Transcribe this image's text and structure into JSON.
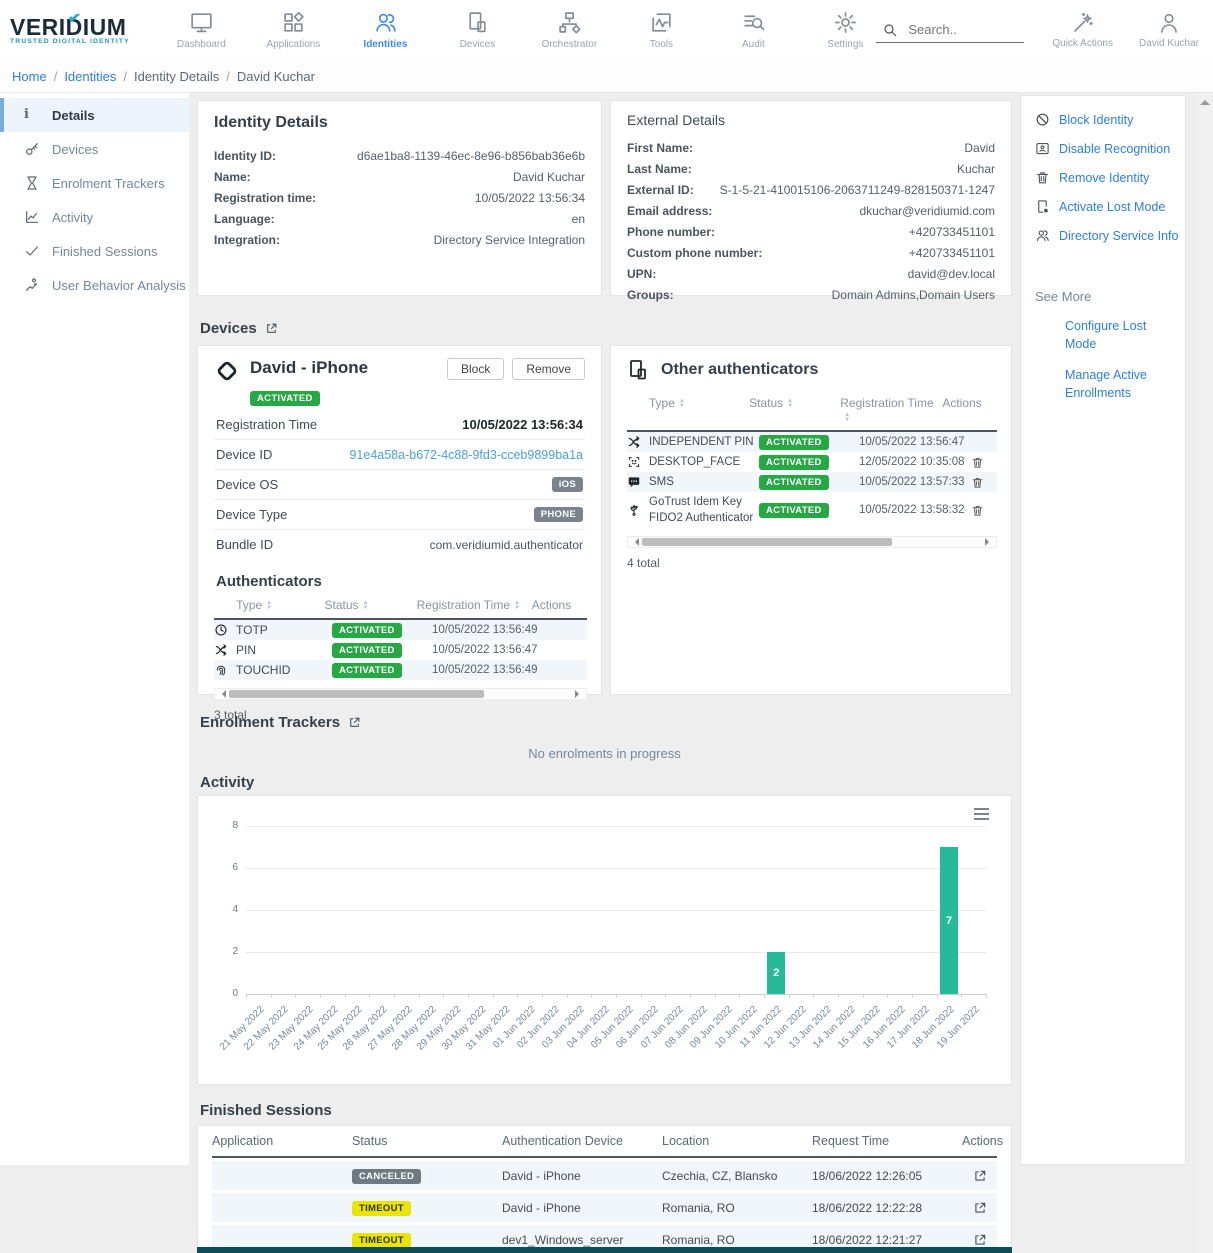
{
  "brand": {
    "name": "VERIDIUM",
    "tagline": "TRUSTED DIGITAL IDENTITY"
  },
  "nav": {
    "items": [
      {
        "label": "Dashboard"
      },
      {
        "label": "Applications"
      },
      {
        "label": "Identities",
        "active": true
      },
      {
        "label": "Devices"
      },
      {
        "label": "Orchestrator"
      },
      {
        "label": "Tools"
      },
      {
        "label": "Audit"
      },
      {
        "label": "Settings"
      }
    ]
  },
  "topbar": {
    "search_placeholder": "Search..",
    "quick_actions": "Quick Actions",
    "user": "David Kuchar"
  },
  "breadcrumb": {
    "items": [
      "Home",
      "Identities",
      "Identity Details",
      "David Kuchar"
    ]
  },
  "sidebar": {
    "items": [
      {
        "label": "Details",
        "active": true
      },
      {
        "label": "Devices"
      },
      {
        "label": "Enrolment Trackers"
      },
      {
        "label": "Activity"
      },
      {
        "label": "Finished Sessions"
      },
      {
        "label": "User Behavior Analysis"
      }
    ]
  },
  "identity_details": {
    "title": "Identity Details",
    "fields": [
      {
        "label": "Identity ID:",
        "value": "d6ae1ba8-1139-46ec-8e96-b856bab36e6b"
      },
      {
        "label": "Name:",
        "value": "David Kuchar"
      },
      {
        "label": "Registration time:",
        "value": "10/05/2022 13:56:34"
      },
      {
        "label": "Language:",
        "value": "en"
      },
      {
        "label": "Integration:",
        "value": "Directory Service Integration"
      }
    ]
  },
  "external_details": {
    "title": "External Details",
    "fields": [
      {
        "label": "First Name:",
        "value": "David"
      },
      {
        "label": "Last Name:",
        "value": "Kuchar"
      },
      {
        "label": "External ID:",
        "value": "S-1-5-21-410015106-2063711249-828150371-1247"
      },
      {
        "label": "Email address:",
        "value": "dkuchar@veridiumid.com"
      },
      {
        "label": "Phone number:",
        "value": "+420733451101"
      },
      {
        "label": "Custom phone number:",
        "value": "+420733451101"
      },
      {
        "label": "UPN:",
        "value": "david@dev.local"
      },
      {
        "label": "Groups:",
        "value": "Domain Admins,Domain Users"
      }
    ]
  },
  "actions_panel": {
    "items": [
      {
        "label": "Block Identity"
      },
      {
        "label": "Disable Recognition"
      },
      {
        "label": "Remove Identity"
      },
      {
        "label": "Activate Lost Mode"
      },
      {
        "label": "Directory Service Info"
      }
    ],
    "see_more": "See More",
    "links": [
      "Configure Lost Mode",
      "Manage Active Enrollments"
    ]
  },
  "devices_section": {
    "title": "Devices"
  },
  "device": {
    "name": "David - iPhone",
    "status": "ACTIVATED",
    "block_label": "Block",
    "remove_label": "Remove",
    "fields": [
      {
        "label": "Registration Time",
        "value": "10/05/2022 13:56:34"
      },
      {
        "label": "Device ID",
        "value": "91e4a58a-b672-4c88-9fd3-cceb9899ba1a"
      },
      {
        "label": "Device OS",
        "value": "iOS"
      },
      {
        "label": "Device Type",
        "value": "PHONE"
      },
      {
        "label": "Bundle ID",
        "value": "com.veridiumid.authenticator"
      }
    ],
    "authenticators": {
      "title": "Authenticators",
      "columns": [
        "Type",
        "Status",
        "Registration Time",
        "Actions"
      ],
      "rows": [
        {
          "type": "TOTP",
          "status": "ACTIVATED",
          "time": "10/05/2022 13:56:49"
        },
        {
          "type": "PIN",
          "status": "ACTIVATED",
          "time": "10/05/2022 13:56:47"
        },
        {
          "type": "TOUCHID",
          "status": "ACTIVATED",
          "time": "10/05/2022 13:56:49"
        }
      ],
      "total": "3 total"
    }
  },
  "other_auth": {
    "title": "Other authenticators",
    "columns": [
      "Type",
      "Status",
      "Registration Time",
      "Actions"
    ],
    "rows": [
      {
        "type": "INDEPENDENT PIN",
        "status": "ACTIVATED",
        "time": "10/05/2022 13:56:47"
      },
      {
        "type": "DESKTOP_FACE",
        "status": "ACTIVATED",
        "time": "12/05/2022 10:35:08"
      },
      {
        "type": "SMS",
        "status": "ACTIVATED",
        "time": "10/05/2022 13:57:33"
      },
      {
        "type": "GoTrust Idem Key FIDO2 Authenticator",
        "status": "ACTIVATED",
        "time": "10/05/2022 13:58:32"
      }
    ],
    "total": "4 total"
  },
  "enrolment": {
    "title": "Enrolment Trackers",
    "empty": "No enrolments in progress"
  },
  "activity": {
    "title": "Activity",
    "chart_data": {
      "type": "bar",
      "title": "",
      "xlabel": "",
      "ylabel": "",
      "ylim": [
        0,
        8
      ],
      "yticks": [
        0,
        2,
        4,
        6,
        8
      ],
      "grid": true,
      "bar_color": "#26b99a",
      "categories": [
        "21 May 2022",
        "22 May 2022",
        "23 May 2022",
        "24 May 2022",
        "25 May 2022",
        "26 May 2022",
        "27 May 2022",
        "28 May 2022",
        "29 May 2022",
        "30 May 2022",
        "31 May 2022",
        "01 Jun 2022",
        "02 Jun 2022",
        "03 Jun 2022",
        "04 Jun 2022",
        "05 Jun 2022",
        "06 Jun 2022",
        "07 Jun 2022",
        "08 Jun 2022",
        "09 Jun 2022",
        "10 Jun 2022",
        "11 Jun 2022",
        "12 Jun 2022",
        "13 Jun 2022",
        "14 Jun 2022",
        "15 Jun 2022",
        "16 Jun 2022",
        "17 Jun 2022",
        "18 Jun 2022",
        "19 Jun 2022"
      ],
      "values": [
        0,
        0,
        0,
        0,
        0,
        0,
        0,
        0,
        0,
        0,
        0,
        0,
        0,
        0,
        0,
        0,
        0,
        0,
        0,
        0,
        0,
        2,
        0,
        0,
        0,
        0,
        0,
        0,
        7,
        0
      ]
    }
  },
  "finished": {
    "title": "Finished Sessions",
    "columns": [
      "Application",
      "Status",
      "Authentication Device",
      "Location",
      "Request Time",
      "Actions"
    ],
    "rows": [
      {
        "application": "",
        "status": "CANCELED",
        "device": "David - iPhone",
        "location": "Czechia, CZ, Blansko",
        "time": "18/06/2022 12:26:05"
      },
      {
        "application": "",
        "status": "TIMEOUT",
        "device": "David - iPhone",
        "location": "Romania, RO",
        "time": "18/06/2022 12:22:28"
      },
      {
        "application": "",
        "status": "TIMEOUT",
        "device": "dev1_Windows_server",
        "location": "Romania, RO",
        "time": "18/06/2022 12:21:27"
      }
    ]
  },
  "colors": {
    "accent_blue": "#3d8af0",
    "link_blue": "#2d7fe0",
    "status_green": "#28a745",
    "status_yellow": "#e8e500",
    "status_gray": "#6e7a83",
    "bar_teal": "#26b99a",
    "bottom_bar": "#0e4d57",
    "logo_teal": "#2596be"
  }
}
